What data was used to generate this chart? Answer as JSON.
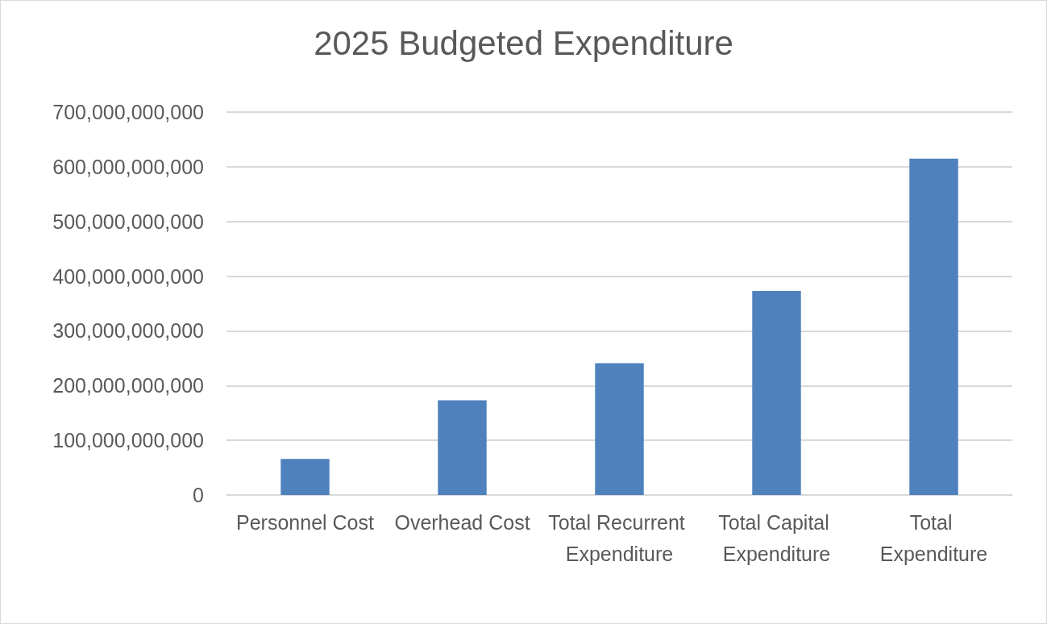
{
  "chart_data": {
    "type": "bar",
    "title": "2025 Budgeted Expenditure",
    "categories": [
      "Personnel Cost",
      "Overhead Cost",
      "Total Recurrent Expenditure",
      "Total Capital Expenditure",
      "Total Expenditure"
    ],
    "values": [
      66000000000,
      173000000000,
      241000000000,
      373000000000,
      615000000000
    ],
    "color": "#4f81bd",
    "ylim": [
      0,
      700000000000
    ],
    "yticks": [
      0,
      {
        "value": 100000000000,
        "label": "100,000,000,000"
      },
      {
        "value": 200000000000,
        "label": "200,000,000,000"
      },
      {
        "value": 300000000000,
        "label": "300,000,000,000"
      },
      {
        "value": 400000000000,
        "label": "400,000,000,000"
      },
      {
        "value": 500000000000,
        "label": "500,000,000,000"
      },
      {
        "value": 600000000000,
        "label": "600,000,000,000"
      },
      {
        "value": 700000000000,
        "label": "700,000,000,000"
      }
    ],
    "grid": "y"
  }
}
